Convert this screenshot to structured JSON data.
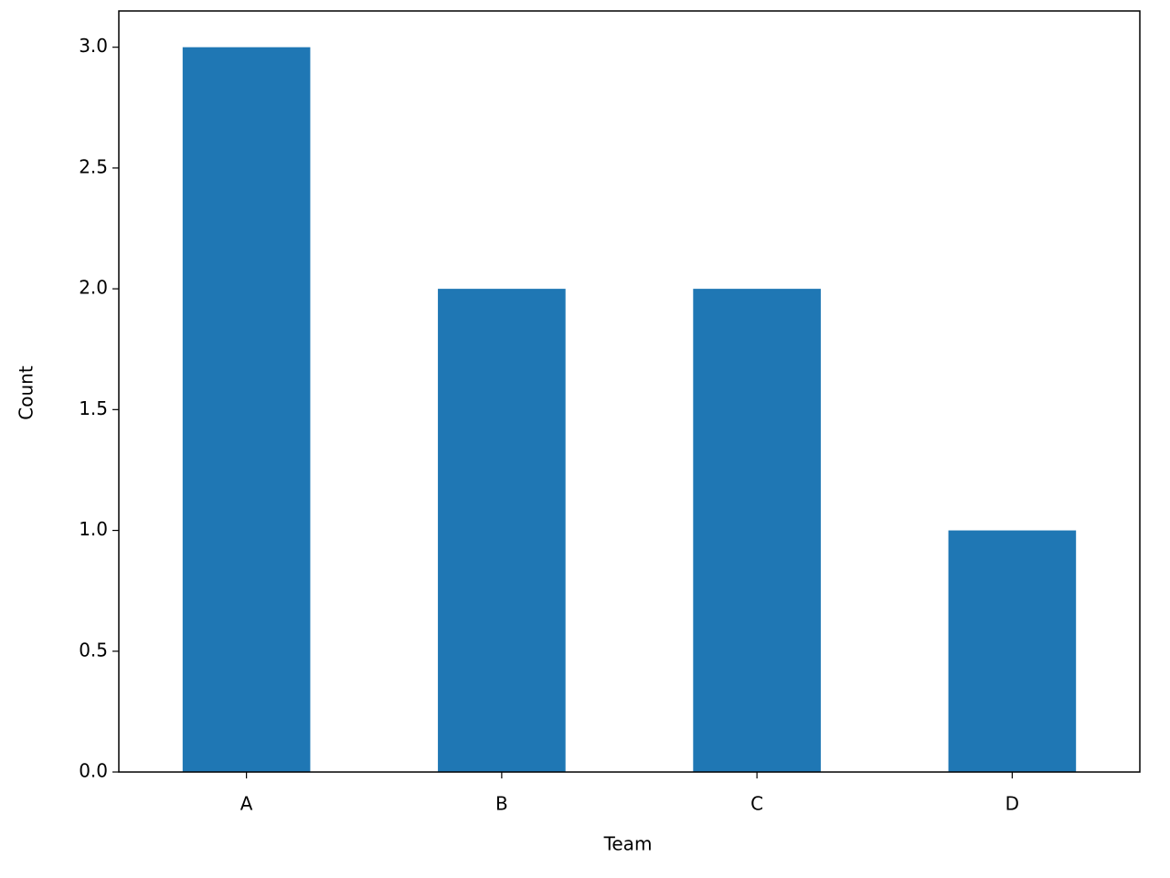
{
  "chart_data": {
    "type": "bar",
    "x_label": "Team",
    "y_label": "Count",
    "categories": [
      "A",
      "B",
      "C",
      "D"
    ],
    "values": [
      3,
      2,
      2,
      1
    ],
    "color": "#1f77b4",
    "ylim": [
      0,
      3.15
    ],
    "yticks": [
      {
        "value": 0,
        "label": "0.0"
      },
      0.5,
      {
        "value": 1,
        "label": "1.0"
      },
      1.5,
      {
        "value": 2,
        "label": "2.0"
      },
      2.5,
      {
        "value": 3,
        "label": "3.0"
      }
    ],
    "grid": false
  }
}
